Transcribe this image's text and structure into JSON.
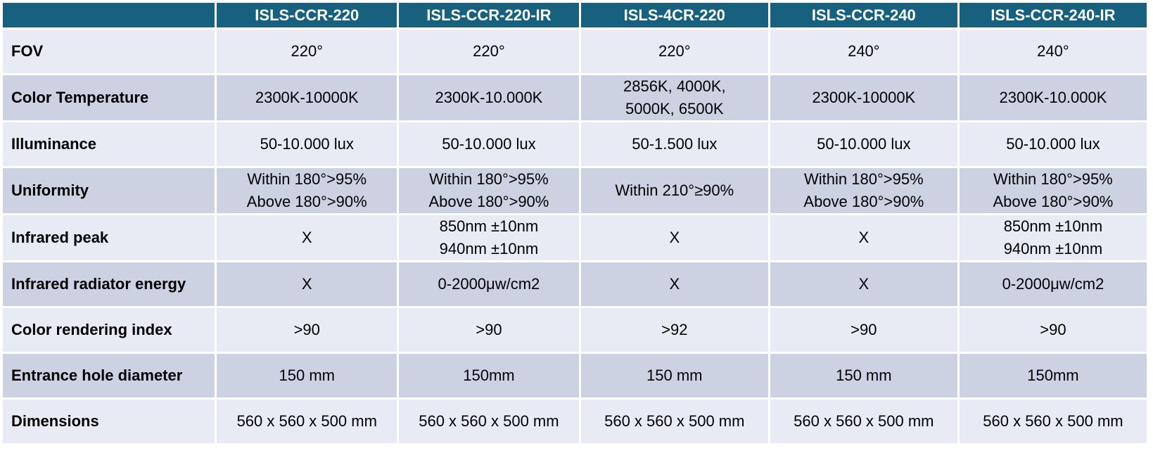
{
  "colors": {
    "header_bg": "#17607e",
    "header_text": "#ffffff",
    "row_light": "#e9ebf4",
    "row_dark": "#cdd2e3"
  },
  "columns": [
    "ISLS-CCR-220",
    "ISLS-CCR-220-IR",
    "ISLS-4CR-220",
    "ISLS-CCR-240",
    "ISLS-CCR-240-IR"
  ],
  "rows": [
    {
      "label": "FOV",
      "cells": [
        [
          "220°"
        ],
        [
          "220°"
        ],
        [
          "220°"
        ],
        [
          "240°"
        ],
        [
          "240°"
        ]
      ]
    },
    {
      "label": "Color Temperature",
      "cells": [
        [
          "2300K-10000K"
        ],
        [
          "2300K-10.000K"
        ],
        [
          "2856K, 4000K,",
          "5000K, 6500K"
        ],
        [
          "2300K-10000K"
        ],
        [
          "2300K-10.000K"
        ]
      ]
    },
    {
      "label": "Illuminance",
      "cells": [
        [
          "50-10.000 lux"
        ],
        [
          "50-10.000 lux"
        ],
        [
          "50-1.500 lux"
        ],
        [
          "50-10.000 lux"
        ],
        [
          "50-10.000 lux"
        ]
      ]
    },
    {
      "label": "Uniformity",
      "cells": [
        [
          "Within 180°>95%",
          "Above 180°>90%"
        ],
        [
          "Within 180°>95%",
          "Above 180°>90%"
        ],
        [
          "Within 210°≥90%"
        ],
        [
          "Within 180°>95%",
          "Above 180°>90%"
        ],
        [
          "Within 180°>95%",
          "Above 180°>90%"
        ]
      ]
    },
    {
      "label": "Infrared peak",
      "cells": [
        [
          "X"
        ],
        [
          "850nm ±10nm",
          "940nm ±10nm"
        ],
        [
          "X"
        ],
        [
          "X"
        ],
        [
          "850nm ±10nm",
          "940nm ±10nm"
        ]
      ]
    },
    {
      "label": "Infrared radiator energy",
      "cells": [
        [
          "X"
        ],
        [
          "0-2000μw/cm2"
        ],
        [
          "X"
        ],
        [
          "X"
        ],
        [
          "0-2000μw/cm2"
        ]
      ]
    },
    {
      "label": "Color rendering index",
      "cells": [
        [
          ">90"
        ],
        [
          ">90"
        ],
        [
          ">92"
        ],
        [
          ">90"
        ],
        [
          ">90"
        ]
      ]
    },
    {
      "label": "Entrance hole diameter",
      "cells": [
        [
          "150 mm"
        ],
        [
          "150mm"
        ],
        [
          "150 mm"
        ],
        [
          "150 mm"
        ],
        [
          "150mm"
        ]
      ]
    },
    {
      "label": "Dimensions",
      "cells": [
        [
          "560 x 560 x 500 mm"
        ],
        [
          "560 x 560 x 500 mm"
        ],
        [
          "560 x 560 x 500 mm"
        ],
        [
          "560 x 560 x 500 mm"
        ],
        [
          "560 x 560 x 500 mm"
        ]
      ]
    }
  ]
}
